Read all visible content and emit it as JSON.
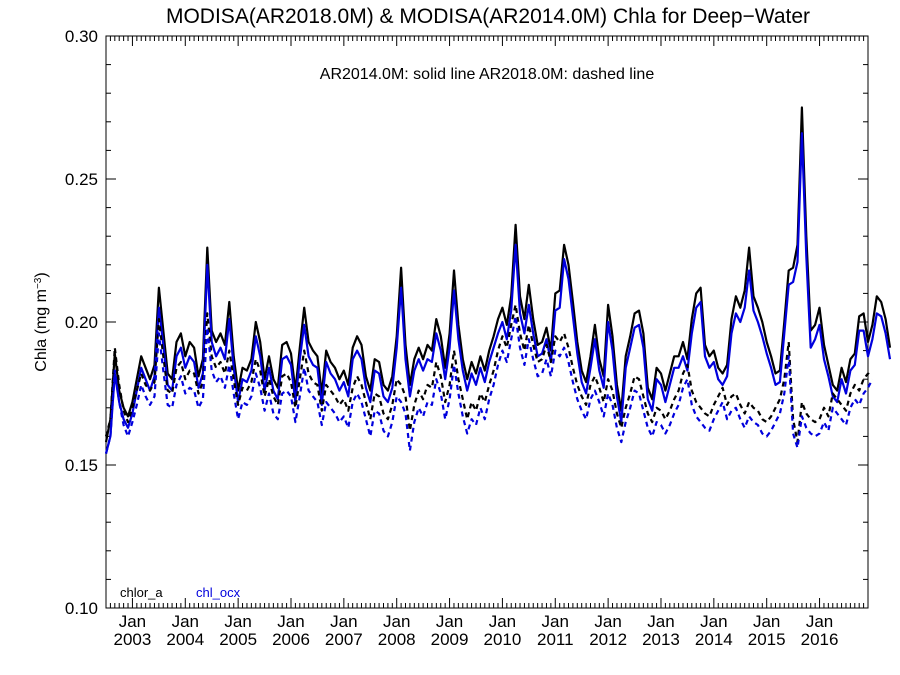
{
  "chart_data": {
    "type": "line",
    "title": "MODISA(AR2018.0M) & MODISA(AR2014.0M)  Chla for Deep−Water",
    "annotation": "AR2014.0M: solid line   AR2018.0M: dashed line",
    "ylabel_main": "Chla (mg m",
    "ylabel_sup": "−3",
    "ylabel_close": ")",
    "ylim": [
      0.1,
      0.3
    ],
    "y_ticks": [
      "0.10",
      "0.15",
      "0.20",
      "0.25",
      "0.30"
    ],
    "x_start": "2002-07",
    "x_end": "2016-12",
    "x_tick_month": "Jan",
    "x_tick_years": [
      "2003",
      "2004",
      "2005",
      "2006",
      "2007",
      "2008",
      "2009",
      "2010",
      "2011",
      "2012",
      "2013",
      "2014",
      "2015",
      "2016"
    ],
    "legend": [
      {
        "label": "chlor_a",
        "color": "#000000"
      },
      {
        "label": "chl_ocx",
        "color": "#0000dd"
      }
    ],
    "series": [
      {
        "name": "chlor_a",
        "version": "AR2014.0M",
        "style": "solid",
        "color": "#000000",
        "values": [
          0.158,
          0.166,
          0.189,
          0.176,
          0.17,
          0.167,
          0.172,
          0.18,
          0.188,
          0.184,
          0.18,
          0.185,
          0.212,
          0.197,
          0.182,
          0.18,
          0.193,
          0.196,
          0.188,
          0.193,
          0.191,
          0.181,
          0.187,
          0.226,
          0.197,
          0.193,
          0.196,
          0.192,
          0.207,
          0.188,
          0.176,
          0.184,
          0.183,
          0.187,
          0.2,
          0.193,
          0.18,
          0.188,
          0.18,
          0.177,
          0.192,
          0.193,
          0.189,
          0.176,
          0.191,
          0.205,
          0.193,
          0.19,
          0.188,
          0.175,
          0.19,
          0.186,
          0.184,
          0.18,
          0.183,
          0.178,
          0.191,
          0.195,
          0.192,
          0.181,
          0.176,
          0.187,
          0.186,
          0.178,
          0.176,
          0.181,
          0.195,
          0.219,
          0.192,
          0.178,
          0.187,
          0.191,
          0.187,
          0.192,
          0.19,
          0.201,
          0.195,
          0.184,
          0.196,
          0.218,
          0.199,
          0.187,
          0.18,
          0.186,
          0.182,
          0.188,
          0.183,
          0.19,
          0.195,
          0.201,
          0.205,
          0.199,
          0.209,
          0.234,
          0.209,
          0.201,
          0.213,
          0.201,
          0.192,
          0.193,
          0.198,
          0.19,
          0.21,
          0.211,
          0.227,
          0.22,
          0.207,
          0.193,
          0.183,
          0.179,
          0.188,
          0.199,
          0.187,
          0.181,
          0.206,
          0.195,
          0.178,
          0.169,
          0.188,
          0.195,
          0.203,
          0.204,
          0.196,
          0.177,
          0.173,
          0.184,
          0.182,
          0.176,
          0.182,
          0.188,
          0.188,
          0.193,
          0.187,
          0.201,
          0.21,
          0.212,
          0.192,
          0.188,
          0.19,
          0.184,
          0.182,
          0.185,
          0.201,
          0.209,
          0.205,
          0.211,
          0.226,
          0.209,
          0.205,
          0.2,
          0.193,
          0.188,
          0.182,
          0.183,
          0.2,
          0.218,
          0.219,
          0.227,
          0.275,
          0.23,
          0.197,
          0.199,
          0.205,
          0.192,
          0.185,
          0.178,
          0.176,
          0.184,
          0.179,
          0.187,
          0.189,
          0.202,
          0.203,
          0.193,
          0.199,
          0.209,
          0.207,
          0.201,
          0.191
        ]
      },
      {
        "name": "chl_ocx",
        "version": "AR2014.0M",
        "style": "solid",
        "color": "#0000dd",
        "values": [
          0.154,
          0.16,
          0.182,
          0.172,
          0.166,
          0.163,
          0.168,
          0.176,
          0.184,
          0.18,
          0.176,
          0.181,
          0.205,
          0.192,
          0.178,
          0.176,
          0.188,
          0.191,
          0.184,
          0.188,
          0.186,
          0.177,
          0.182,
          0.22,
          0.193,
          0.188,
          0.191,
          0.187,
          0.201,
          0.184,
          0.172,
          0.18,
          0.179,
          0.183,
          0.195,
          0.188,
          0.176,
          0.184,
          0.176,
          0.173,
          0.187,
          0.188,
          0.185,
          0.172,
          0.187,
          0.199,
          0.188,
          0.185,
          0.184,
          0.171,
          0.186,
          0.182,
          0.18,
          0.176,
          0.179,
          0.174,
          0.187,
          0.19,
          0.187,
          0.177,
          0.172,
          0.183,
          0.182,
          0.174,
          0.172,
          0.177,
          0.191,
          0.212,
          0.187,
          0.174,
          0.183,
          0.187,
          0.183,
          0.187,
          0.186,
          0.196,
          0.19,
          0.18,
          0.191,
          0.211,
          0.194,
          0.183,
          0.176,
          0.182,
          0.178,
          0.184,
          0.179,
          0.186,
          0.191,
          0.196,
          0.2,
          0.194,
          0.204,
          0.227,
          0.203,
          0.196,
          0.206,
          0.196,
          0.188,
          0.189,
          0.194,
          0.186,
          0.204,
          0.205,
          0.222,
          0.215,
          0.202,
          0.189,
          0.179,
          0.175,
          0.184,
          0.194,
          0.183,
          0.177,
          0.2,
          0.19,
          0.174,
          0.165,
          0.184,
          0.191,
          0.198,
          0.199,
          0.191,
          0.173,
          0.169,
          0.18,
          0.178,
          0.172,
          0.178,
          0.184,
          0.184,
          0.188,
          0.183,
          0.196,
          0.205,
          0.207,
          0.188,
          0.184,
          0.186,
          0.18,
          0.178,
          0.181,
          0.196,
          0.203,
          0.2,
          0.205,
          0.218,
          0.204,
          0.2,
          0.195,
          0.189,
          0.184,
          0.178,
          0.179,
          0.196,
          0.213,
          0.214,
          0.221,
          0.266,
          0.223,
          0.191,
          0.194,
          0.199,
          0.187,
          0.181,
          0.174,
          0.172,
          0.18,
          0.175,
          0.183,
          0.185,
          0.197,
          0.197,
          0.188,
          0.194,
          0.203,
          0.202,
          0.196,
          0.187
        ]
      },
      {
        "name": "chlor_a",
        "version": "AR2018.0M",
        "style": "dashed",
        "color": "#000000",
        "values": [
          0.16,
          0.166,
          0.191,
          0.178,
          0.169,
          0.165,
          0.17,
          0.176,
          0.182,
          0.178,
          0.176,
          0.179,
          0.201,
          0.188,
          0.176,
          0.175,
          0.184,
          0.186,
          0.18,
          0.183,
          0.182,
          0.175,
          0.179,
          0.203,
          0.188,
          0.184,
          0.186,
          0.182,
          0.19,
          0.18,
          0.171,
          0.177,
          0.176,
          0.179,
          0.187,
          0.183,
          0.174,
          0.18,
          0.174,
          0.171,
          0.181,
          0.182,
          0.179,
          0.17,
          0.18,
          0.19,
          0.182,
          0.179,
          0.178,
          0.169,
          0.178,
          0.176,
          0.174,
          0.171,
          0.173,
          0.169,
          0.177,
          0.181,
          0.178,
          0.172,
          0.166,
          0.175,
          0.174,
          0.168,
          0.166,
          0.171,
          0.18,
          0.178,
          0.174,
          0.162,
          0.171,
          0.176,
          0.173,
          0.178,
          0.177,
          0.186,
          0.181,
          0.172,
          0.178,
          0.19,
          0.18,
          0.173,
          0.166,
          0.172,
          0.169,
          0.175,
          0.172,
          0.178,
          0.183,
          0.19,
          0.195,
          0.191,
          0.199,
          0.206,
          0.196,
          0.19,
          0.199,
          0.192,
          0.186,
          0.187,
          0.192,
          0.186,
          0.195,
          0.193,
          0.196,
          0.191,
          0.184,
          0.178,
          0.174,
          0.171,
          0.178,
          0.181,
          0.177,
          0.172,
          0.18,
          0.176,
          0.168,
          0.163,
          0.17,
          0.175,
          0.181,
          0.18,
          0.174,
          0.168,
          0.165,
          0.17,
          0.169,
          0.166,
          0.169,
          0.173,
          0.176,
          0.182,
          0.185,
          0.176,
          0.172,
          0.17,
          0.168,
          0.167,
          0.171,
          0.174,
          0.177,
          0.171,
          0.174,
          0.175,
          0.171,
          0.168,
          0.172,
          0.17,
          0.169,
          0.166,
          0.165,
          0.167,
          0.17,
          0.173,
          0.18,
          0.193,
          0.166,
          0.158,
          0.172,
          0.168,
          0.166,
          0.165,
          0.166,
          0.17,
          0.167,
          0.175,
          0.173,
          0.171,
          0.169,
          0.175,
          0.178,
          0.176,
          0.18,
          0.182,
          0.181
        ]
      },
      {
        "name": "chl_ocx",
        "version": "AR2018.0M",
        "style": "dashed",
        "color": "#0000dd",
        "values": [
          0.154,
          0.16,
          0.183,
          0.172,
          0.164,
          0.16,
          0.165,
          0.171,
          0.178,
          0.174,
          0.171,
          0.174,
          0.196,
          0.183,
          0.171,
          0.17,
          0.178,
          0.181,
          0.175,
          0.177,
          0.176,
          0.17,
          0.173,
          0.198,
          0.183,
          0.179,
          0.181,
          0.177,
          0.185,
          0.175,
          0.166,
          0.172,
          0.171,
          0.174,
          0.182,
          0.177,
          0.169,
          0.175,
          0.168,
          0.166,
          0.175,
          0.176,
          0.174,
          0.165,
          0.174,
          0.184,
          0.176,
          0.174,
          0.172,
          0.164,
          0.172,
          0.17,
          0.168,
          0.165,
          0.167,
          0.163,
          0.172,
          0.175,
          0.172,
          0.166,
          0.16,
          0.169,
          0.168,
          0.162,
          0.16,
          0.165,
          0.174,
          0.172,
          0.168,
          0.155,
          0.165,
          0.17,
          0.167,
          0.172,
          0.171,
          0.18,
          0.175,
          0.166,
          0.173,
          0.185,
          0.175,
          0.167,
          0.161,
          0.166,
          0.164,
          0.17,
          0.166,
          0.173,
          0.178,
          0.185,
          0.19,
          0.186,
          0.194,
          0.202,
          0.191,
          0.185,
          0.194,
          0.187,
          0.181,
          0.182,
          0.187,
          0.181,
          0.19,
          0.188,
          0.191,
          0.186,
          0.179,
          0.173,
          0.169,
          0.166,
          0.173,
          0.176,
          0.172,
          0.167,
          0.175,
          0.171,
          0.163,
          0.158,
          0.165,
          0.17,
          0.176,
          0.175,
          0.169,
          0.163,
          0.16,
          0.165,
          0.164,
          0.161,
          0.164,
          0.168,
          0.171,
          0.177,
          0.18,
          0.171,
          0.167,
          0.165,
          0.163,
          0.162,
          0.166,
          0.169,
          0.172,
          0.166,
          0.169,
          0.17,
          0.166,
          0.163,
          0.167,
          0.165,
          0.164,
          0.161,
          0.16,
          0.162,
          0.165,
          0.168,
          0.175,
          0.188,
          0.161,
          0.156,
          0.167,
          0.163,
          0.161,
          0.16,
          0.161,
          0.165,
          0.162,
          0.17,
          0.168,
          0.166,
          0.164,
          0.17,
          0.173,
          0.171,
          0.175,
          0.177,
          0.18
        ]
      }
    ]
  }
}
